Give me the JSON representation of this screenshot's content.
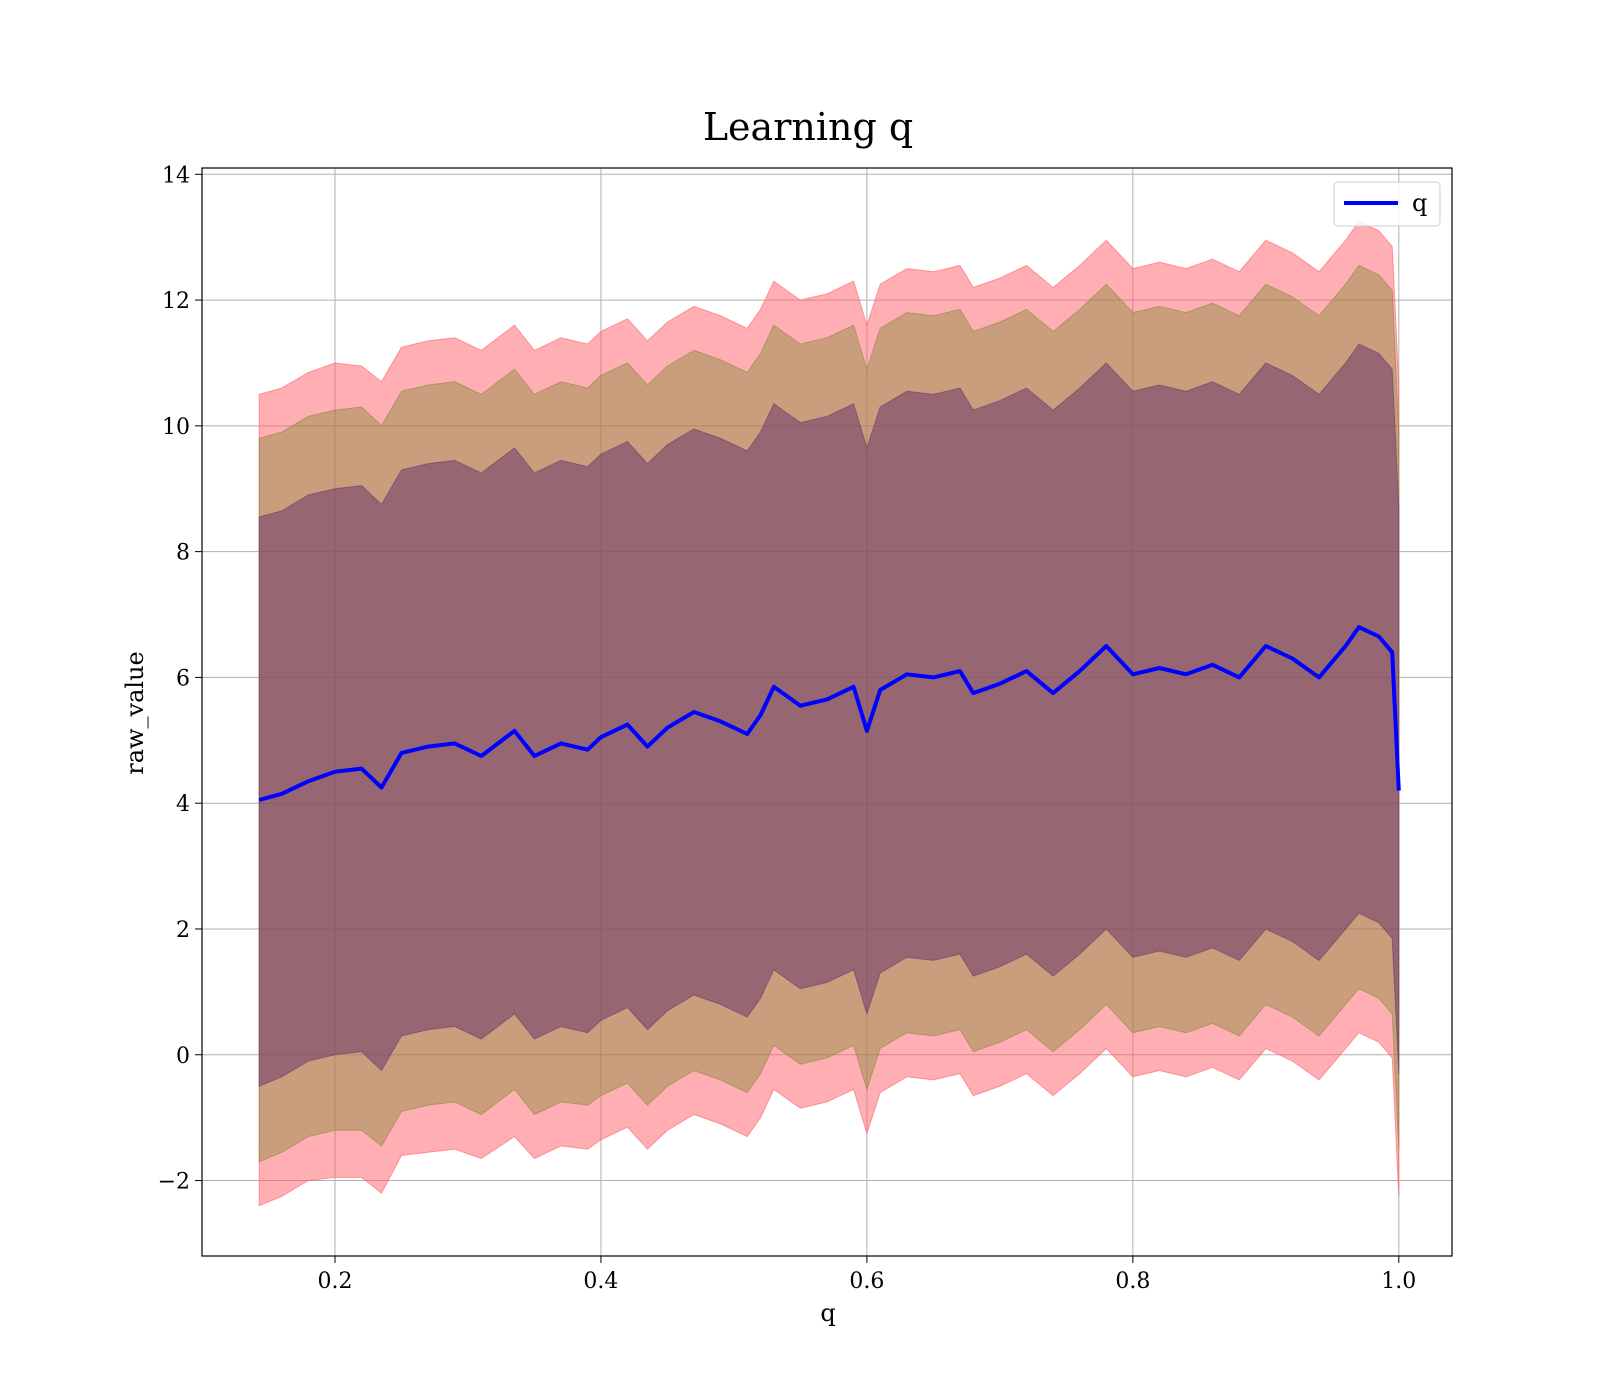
{
  "chart_data": {
    "type": "line",
    "title": "Learning q",
    "xlabel": "q",
    "ylabel": "raw_value",
    "xlim": [
      0.1,
      1.04
    ],
    "ylim": [
      -3.2,
      14.1
    ],
    "xticks": [
      0.2,
      0.4,
      0.6,
      0.8,
      1.0
    ],
    "xtick_labels": [
      "0.2",
      "0.4",
      "0.6",
      "0.8",
      "1.0"
    ],
    "yticks": [
      -2,
      0,
      2,
      4,
      6,
      8,
      10,
      12,
      14
    ],
    "ytick_labels": [
      "−2",
      "0",
      "2",
      "4",
      "6",
      "8",
      "10",
      "12",
      "14"
    ],
    "grid": true,
    "legend_position": "top-right",
    "x": [
      0.143,
      0.16,
      0.18,
      0.2,
      0.22,
      0.235,
      0.25,
      0.27,
      0.29,
      0.31,
      0.335,
      0.35,
      0.37,
      0.39,
      0.4,
      0.42,
      0.435,
      0.45,
      0.47,
      0.49,
      0.51,
      0.52,
      0.53,
      0.55,
      0.57,
      0.59,
      0.6,
      0.61,
      0.63,
      0.65,
      0.67,
      0.68,
      0.7,
      0.72,
      0.74,
      0.76,
      0.78,
      0.8,
      0.82,
      0.84,
      0.86,
      0.88,
      0.9,
      0.92,
      0.94,
      0.96,
      0.97,
      0.985,
      0.995,
      1.0
    ],
    "series": [
      {
        "name": "q",
        "color": "#0000ff",
        "values": [
          4.05,
          4.15,
          4.35,
          4.5,
          4.55,
          4.25,
          4.8,
          4.9,
          4.95,
          4.75,
          5.15,
          4.75,
          4.95,
          4.85,
          5.05,
          5.25,
          4.9,
          5.2,
          5.45,
          5.3,
          5.1,
          5.4,
          5.85,
          5.55,
          5.65,
          5.85,
          5.15,
          5.8,
          6.05,
          6.0,
          6.1,
          5.75,
          5.9,
          6.1,
          5.75,
          6.1,
          6.5,
          6.05,
          6.15,
          6.05,
          6.2,
          6.0,
          6.5,
          6.3,
          6.0,
          6.5,
          6.8,
          6.65,
          6.4,
          4.2
        ]
      }
    ],
    "bands": [
      {
        "color": "#ff5f69",
        "opacity": 0.5,
        "lower": [
          -2.4,
          -2.25,
          -2.0,
          -1.95,
          -1.95,
          -2.2,
          -1.6,
          -1.55,
          -1.5,
          -1.65,
          -1.3,
          -1.65,
          -1.45,
          -1.5,
          -1.35,
          -1.15,
          -1.5,
          -1.2,
          -0.95,
          -1.1,
          -1.3,
          -1.0,
          -0.55,
          -0.85,
          -0.75,
          -0.55,
          -1.25,
          -0.6,
          -0.35,
          -0.4,
          -0.3,
          -0.65,
          -0.5,
          -0.3,
          -0.65,
          -0.3,
          0.1,
          -0.35,
          -0.25,
          -0.35,
          -0.2,
          -0.4,
          0.1,
          -0.1,
          -0.4,
          0.1,
          0.35,
          0.2,
          -0.05,
          -2.25
        ],
        "upper": [
          10.5,
          10.6,
          10.85,
          11.0,
          10.95,
          10.7,
          11.25,
          11.35,
          11.4,
          11.2,
          11.6,
          11.2,
          11.4,
          11.3,
          11.5,
          11.7,
          11.35,
          11.65,
          11.9,
          11.75,
          11.55,
          11.85,
          12.3,
          12.0,
          12.1,
          12.3,
          11.6,
          12.25,
          12.5,
          12.45,
          12.55,
          12.2,
          12.35,
          12.55,
          12.2,
          12.55,
          12.95,
          12.5,
          12.6,
          12.5,
          12.65,
          12.45,
          12.95,
          12.75,
          12.45,
          12.95,
          13.25,
          13.1,
          12.85,
          10.65
        ]
      },
      {
        "color": "#8a8a3a",
        "opacity": 0.45,
        "lower": [
          -1.7,
          -1.55,
          -1.3,
          -1.2,
          -1.2,
          -1.45,
          -0.9,
          -0.8,
          -0.75,
          -0.95,
          -0.55,
          -0.95,
          -0.75,
          -0.8,
          -0.65,
          -0.45,
          -0.8,
          -0.5,
          -0.25,
          -0.4,
          -0.6,
          -0.3,
          0.15,
          -0.15,
          -0.05,
          0.15,
          -0.55,
          0.1,
          0.35,
          0.3,
          0.4,
          0.05,
          0.2,
          0.4,
          0.05,
          0.4,
          0.8,
          0.35,
          0.45,
          0.35,
          0.5,
          0.3,
          0.8,
          0.6,
          0.3,
          0.8,
          1.05,
          0.9,
          0.65,
          -1.5
        ],
        "upper": [
          9.8,
          9.9,
          10.15,
          10.25,
          10.3,
          10.0,
          10.55,
          10.65,
          10.7,
          10.5,
          10.9,
          10.5,
          10.7,
          10.6,
          10.8,
          11.0,
          10.65,
          10.95,
          11.2,
          11.05,
          10.85,
          11.15,
          11.6,
          11.3,
          11.4,
          11.6,
          10.9,
          11.55,
          11.8,
          11.75,
          11.85,
          11.5,
          11.65,
          11.85,
          11.5,
          11.85,
          12.25,
          11.8,
          11.9,
          11.8,
          11.95,
          11.75,
          12.25,
          12.05,
          11.75,
          12.25,
          12.55,
          12.4,
          12.15,
          9.9
        ]
      },
      {
        "color": "#6b3a6b",
        "opacity": 0.55,
        "lower": [
          -0.5,
          -0.35,
          -0.1,
          0.0,
          0.05,
          -0.25,
          0.3,
          0.4,
          0.45,
          0.25,
          0.65,
          0.25,
          0.45,
          0.35,
          0.55,
          0.75,
          0.4,
          0.7,
          0.95,
          0.8,
          0.6,
          0.9,
          1.35,
          1.05,
          1.15,
          1.35,
          0.65,
          1.3,
          1.55,
          1.5,
          1.6,
          1.25,
          1.4,
          1.6,
          1.25,
          1.6,
          2.0,
          1.55,
          1.65,
          1.55,
          1.7,
          1.5,
          2.0,
          1.8,
          1.5,
          2.0,
          2.25,
          2.1,
          1.85,
          -0.3
        ],
        "upper": [
          8.55,
          8.65,
          8.9,
          9.0,
          9.05,
          8.75,
          9.3,
          9.4,
          9.45,
          9.25,
          9.65,
          9.25,
          9.45,
          9.35,
          9.55,
          9.75,
          9.4,
          9.7,
          9.95,
          9.8,
          9.6,
          9.9,
          10.35,
          10.05,
          10.15,
          10.35,
          9.65,
          10.3,
          10.55,
          10.5,
          10.6,
          10.25,
          10.4,
          10.6,
          10.25,
          10.6,
          11.0,
          10.55,
          10.65,
          10.55,
          10.7,
          10.5,
          11.0,
          10.8,
          10.5,
          11.0,
          11.3,
          11.15,
          10.9,
          8.7
        ]
      }
    ]
  }
}
